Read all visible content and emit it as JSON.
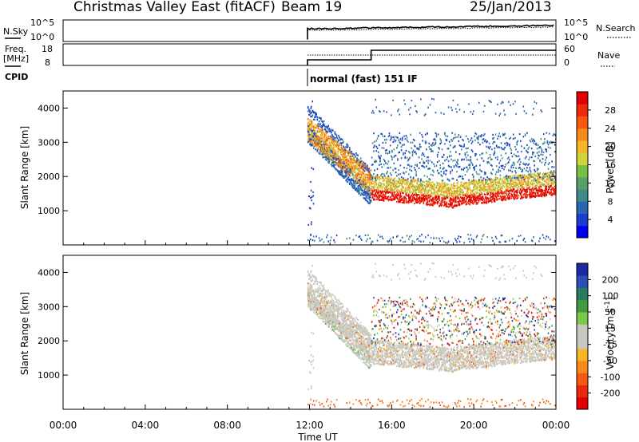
{
  "header": {
    "title": "Christmas Valley East (fitACF)",
    "beam": "Beam 19",
    "date": "25/Jan/2013"
  },
  "top_panels": {
    "noise": {
      "left_label": "N.Sky",
      "right_label": "N.Search",
      "left_ticks": [
        "10^5",
        "10^0"
      ],
      "right_ticks": [
        "10^5",
        "10^0"
      ]
    },
    "freq": {
      "left_label_1": "Freq.",
      "left_label_2": "[MHz]",
      "right_label": "Nave",
      "left_ticks": [
        "18",
        "8"
      ],
      "right_ticks": [
        "60",
        "0"
      ]
    },
    "cpid": {
      "label": "CPID",
      "mode_text": "normal (fast) 151 IF"
    }
  },
  "chart_data": [
    {
      "type": "heatmap",
      "name": "power-panel",
      "ylabel": "Slant Range [km]",
      "xlabel": "Time UT",
      "ylim": [
        0,
        4500
      ],
      "y_ticks": [
        1000,
        2000,
        3000,
        4000
      ],
      "data_start_hour": 11.9,
      "colorbar": {
        "label": "Power [dB]",
        "ticks": [
          28,
          24,
          20,
          16,
          12,
          8,
          4
        ],
        "range": [
          0,
          32
        ],
        "colors": [
          "#0000f0",
          "#1a3cc8",
          "#2a66b0",
          "#3f8a8a",
          "#5aa06a",
          "#76c043",
          "#cfd43a",
          "#f7b52a",
          "#f78a1c",
          "#f55a10",
          "#ee2a0a",
          "#e00000"
        ]
      }
    },
    {
      "type": "heatmap",
      "name": "velocity-panel",
      "ylabel": "Slant Range [km]",
      "xlabel": "Time UT",
      "ylim": [
        0,
        4500
      ],
      "y_ticks": [
        1000,
        2000,
        3000,
        4000
      ],
      "data_start_hour": 11.9,
      "colorbar": {
        "label": "Velocity [m s-1]",
        "ticks": [
          "200",
          "100",
          "50",
          "15",
          "-15",
          "-50",
          "-100",
          "-200"
        ],
        "colors": [
          "#1a2aa0",
          "#2a50b8",
          "#2a7a60",
          "#3f9a40",
          "#7cc84a",
          "#c8c8c0",
          "#c8c8c0",
          "#f7b52a",
          "#f78a1c",
          "#f55a10",
          "#e82a0a",
          "#e00000"
        ]
      }
    }
  ],
  "x_axis": {
    "label": "Time UT",
    "range": [
      0,
      24
    ],
    "tick_labels": [
      "00:00",
      "04:00",
      "08:00",
      "12:00",
      "16:00",
      "20:00",
      "00:00"
    ],
    "tick_hours": [
      0,
      4,
      8,
      12,
      16,
      20,
      24
    ]
  }
}
